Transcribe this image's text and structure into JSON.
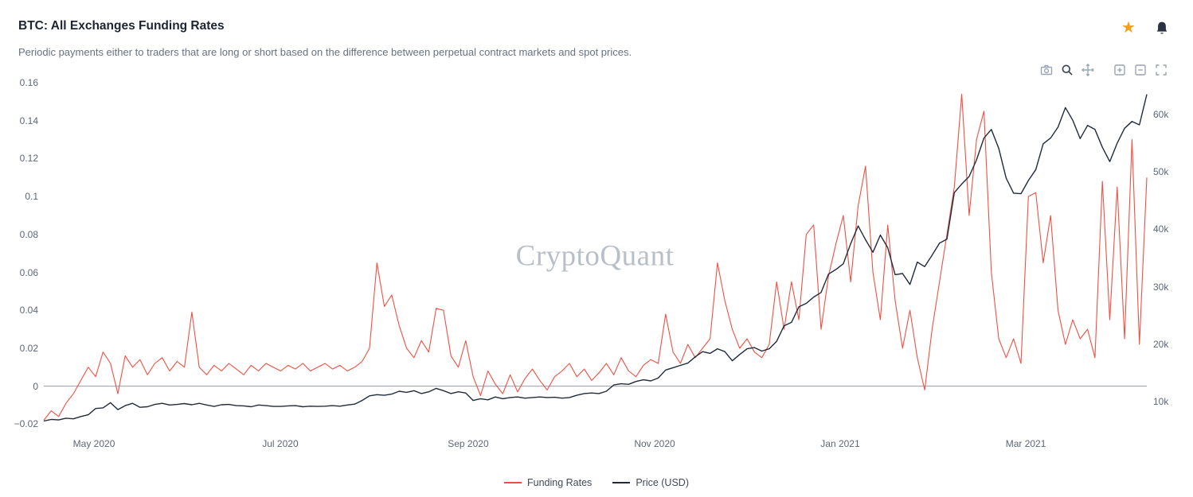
{
  "header": {
    "title": "BTC: All Exchanges Funding Rates",
    "subtitle": "Periodic payments either to traders that are long or short based on the difference between perpetual contract markets and spot prices."
  },
  "watermark": "CryptoQuant",
  "colors": {
    "funding_line": "#ef5044",
    "price_line": "#212b3b",
    "star_accent": "#f0a11c",
    "bell": "#2a3342",
    "watermark_text": "#b9bfc9",
    "axis_text": "#5d6775",
    "zero_line": "#6b7684"
  },
  "toolbar": {
    "icons": [
      "camera-icon",
      "zoom-icon",
      "pan-icon",
      "zoom-in-icon",
      "zoom-out-icon",
      "autoscale-icon"
    ],
    "active_icon": "zoom-icon"
  },
  "header_icons": [
    "star-icon",
    "bell-icon"
  ],
  "chart_data": {
    "type": "line",
    "title": "BTC: All Exchanges Funding Rates",
    "legend_position": "bottom",
    "grid": false,
    "x_ticks": [
      {
        "label": "May 2020",
        "pos": 0.0455
      },
      {
        "label": "Jul 2020",
        "pos": 0.2144
      },
      {
        "label": "Sep 2020",
        "pos": 0.3848
      },
      {
        "label": "Nov 2020",
        "pos": 0.5538
      },
      {
        "label": "Jan 2021",
        "pos": 0.722
      },
      {
        "label": "Mar 2021",
        "pos": 0.8903
      }
    ],
    "left_axis": {
      "range": [
        -0.02,
        0.16
      ],
      "ticks": [
        {
          "label": "0.16",
          "value": 0.16
        },
        {
          "label": "0.14",
          "value": 0.14
        },
        {
          "label": "0.12",
          "value": 0.12
        },
        {
          "label": "0.1",
          "value": 0.1
        },
        {
          "label": "0.08",
          "value": 0.08
        },
        {
          "label": "0.06",
          "value": 0.06
        },
        {
          "label": "0.04",
          "value": 0.04
        },
        {
          "label": "0.02",
          "value": 0.02
        },
        {
          "label": "0",
          "value": 0
        },
        {
          "label": "−0.02",
          "value": -0.02
        }
      ]
    },
    "right_axis": {
      "range": [
        10000,
        60000
      ],
      "ticks": [
        {
          "label": "60k",
          "value": 60000
        },
        {
          "label": "50k",
          "value": 50000
        },
        {
          "label": "40k",
          "value": 40000
        },
        {
          "label": "30k",
          "value": 30000
        },
        {
          "label": "20k",
          "value": 20000
        },
        {
          "label": "10k",
          "value": 10000
        }
      ]
    },
    "series": [
      {
        "name": "Funding Rates",
        "axis": "left",
        "color": "#ef5044",
        "values": [
          -0.018,
          -0.013,
          -0.016,
          -0.009,
          -0.004,
          0.003,
          0.01,
          0.005,
          0.018,
          0.012,
          -0.004,
          0.016,
          0.01,
          0.014,
          0.006,
          0.012,
          0.015,
          0.008,
          0.013,
          0.01,
          0.039,
          0.01,
          0.006,
          0.011,
          0.008,
          0.012,
          0.009,
          0.006,
          0.011,
          0.008,
          0.012,
          0.01,
          0.008,
          0.011,
          0.009,
          0.012,
          0.008,
          0.01,
          0.012,
          0.009,
          0.011,
          0.008,
          0.01,
          0.013,
          0.02,
          0.065,
          0.042,
          0.048,
          0.032,
          0.02,
          0.015,
          0.024,
          0.018,
          0.041,
          0.04,
          0.016,
          0.01,
          0.024,
          0.005,
          -0.005,
          0.008,
          0.001,
          -0.004,
          0.006,
          -0.003,
          0.004,
          0.009,
          0.003,
          -0.002,
          0.005,
          0.008,
          0.012,
          0.005,
          0.009,
          0.003,
          0.007,
          0.012,
          0.006,
          0.015,
          0.008,
          0.005,
          0.011,
          0.014,
          0.012,
          0.038,
          0.018,
          0.012,
          0.022,
          0.015,
          0.02,
          0.025,
          0.065,
          0.045,
          0.03,
          0.02,
          0.025,
          0.018,
          0.015,
          0.022,
          0.055,
          0.03,
          0.055,
          0.035,
          0.08,
          0.085,
          0.03,
          0.058,
          0.075,
          0.09,
          0.055,
          0.095,
          0.116,
          0.06,
          0.035,
          0.085,
          0.045,
          0.02,
          0.04,
          0.015,
          -0.002,
          0.03,
          0.055,
          0.08,
          0.105,
          0.154,
          0.09,
          0.13,
          0.145,
          0.06,
          0.025,
          0.015,
          0.025,
          0.012,
          0.1,
          0.102,
          0.065,
          0.09,
          0.04,
          0.022,
          0.035,
          0.025,
          0.03,
          0.015,
          0.108,
          0.035,
          0.105,
          0.025,
          0.13,
          0.022,
          0.11
        ]
      },
      {
        "name": "Price (USD)",
        "axis": "right",
        "color": "#212b3b",
        "values": [
          6600,
          6900,
          6800,
          7100,
          7000,
          7400,
          7700,
          8800,
          8900,
          9800,
          8600,
          9300,
          9700,
          9000,
          9100,
          9500,
          9700,
          9400,
          9500,
          9650,
          9450,
          9700,
          9400,
          9150,
          9450,
          9500,
          9300,
          9250,
          9100,
          9400,
          9300,
          9150,
          9150,
          9250,
          9300,
          9100,
          9200,
          9150,
          9200,
          9300,
          9200,
          9400,
          9550,
          10200,
          11000,
          11200,
          11100,
          11300,
          11800,
          11600,
          11900,
          11400,
          11700,
          12300,
          11900,
          11400,
          11700,
          11500,
          10200,
          10500,
          10300,
          10800,
          10500,
          10700,
          10800,
          10600,
          10700,
          10800,
          10700,
          10750,
          10600,
          10700,
          11100,
          11400,
          11500,
          11400,
          11800,
          12900,
          13100,
          13000,
          13500,
          13800,
          13600,
          14100,
          15500,
          15900,
          16300,
          16700,
          17800,
          18700,
          18400,
          19200,
          18700,
          17100,
          18200,
          19200,
          19400,
          18800,
          19200,
          20500,
          23200,
          23800,
          26500,
          27100,
          28200,
          29000,
          32200,
          33000,
          34000,
          37500,
          40600,
          38200,
          36000,
          39000,
          36800,
          32100,
          32300,
          30400,
          34300,
          33500,
          35500,
          37600,
          38300,
          46400,
          47900,
          49200,
          52100,
          55900,
          57400,
          54100,
          48900,
          46300,
          46200,
          48500,
          50400,
          54900,
          55900,
          57800,
          61200,
          59000,
          55800,
          58100,
          57400,
          54300,
          51800,
          55000,
          57600,
          58800,
          58200,
          63500
        ]
      }
    ]
  }
}
